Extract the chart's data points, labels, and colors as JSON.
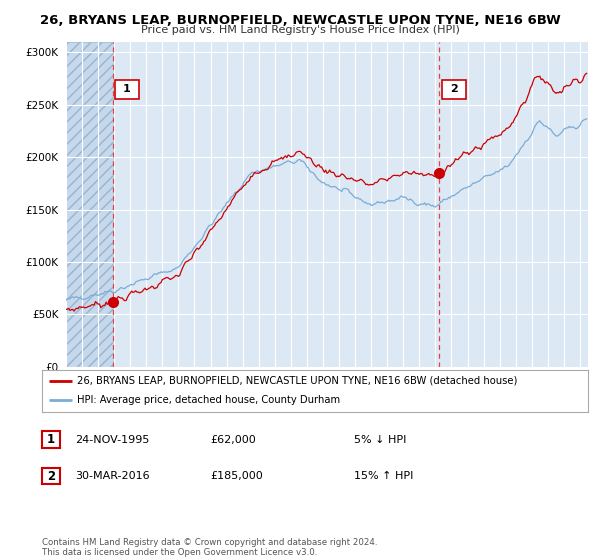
{
  "title": "26, BRYANS LEAP, BURNOPFIELD, NEWCASTLE UPON TYNE, NE16 6BW",
  "subtitle": "Price paid vs. HM Land Registry's House Price Index (HPI)",
  "bg_color": "#dce9f5",
  "hatch_color": "#b8ccde",
  "grid_color": "#ffffff",
  "red_line_color": "#cc0000",
  "blue_line_color": "#7aacd6",
  "sale1_date": "24-NOV-1995",
  "sale1_price": "£62,000",
  "sale1_hpi": "5% ↓ HPI",
  "sale1_x": 1995.9,
  "sale1_y": 62000,
  "sale2_date": "30-MAR-2016",
  "sale2_price": "£185,000",
  "sale2_hpi": "15% ↑ HPI",
  "sale2_x": 2016.25,
  "sale2_y": 185000,
  "legend_red": "26, BRYANS LEAP, BURNOPFIELD, NEWCASTLE UPON TYNE, NE16 6BW (detached house)",
  "legend_blue": "HPI: Average price, detached house, County Durham",
  "footer": "Contains HM Land Registry data © Crown copyright and database right 2024.\nThis data is licensed under the Open Government Licence v3.0.",
  "ylim": [
    0,
    310000
  ],
  "xlim_start": 1993.0,
  "xlim_end": 2025.5
}
